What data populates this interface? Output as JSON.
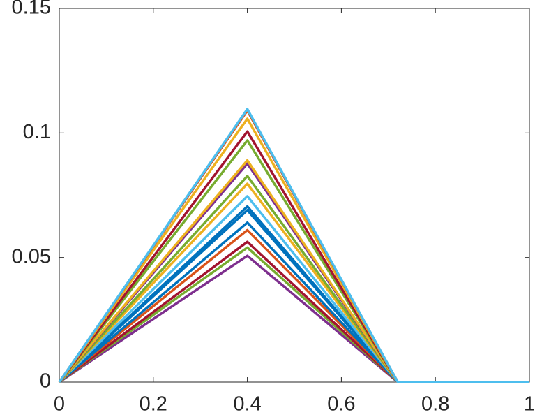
{
  "chart_data": {
    "type": "line",
    "x": [
      0,
      0.4,
      0.72,
      1
    ],
    "series": [
      {
        "color": "#7E2F8E",
        "values": [
          0,
          0.0507,
          0,
          0
        ]
      },
      {
        "color": "#77AC30",
        "values": [
          0,
          0.054,
          0,
          0
        ]
      },
      {
        "color": "#A2142F",
        "values": [
          0,
          0.0563,
          0,
          0
        ]
      },
      {
        "color": "#D95319",
        "values": [
          0,
          0.061,
          0,
          0
        ]
      },
      {
        "color": "#0072BD",
        "values": [
          0,
          0.064,
          0,
          0
        ]
      },
      {
        "color": "#0072BD",
        "values": [
          0,
          0.069,
          0,
          0
        ]
      },
      {
        "color": "#0072BD",
        "values": [
          0,
          0.0705,
          0,
          0
        ]
      },
      {
        "color": "#4DBEEE",
        "values": [
          0,
          0.0746,
          0,
          0
        ]
      },
      {
        "color": "#EDB120",
        "values": [
          0,
          0.0796,
          0,
          0
        ]
      },
      {
        "color": "#77AC30",
        "values": [
          0,
          0.0827,
          0,
          0
        ]
      },
      {
        "color": "#7E2F8E",
        "values": [
          0,
          0.0877,
          0,
          0
        ]
      },
      {
        "color": "#EDB120",
        "values": [
          0,
          0.089,
          0,
          0
        ]
      },
      {
        "color": "#77AC30",
        "values": [
          0,
          0.097,
          0,
          0
        ]
      },
      {
        "color": "#A2142F",
        "values": [
          0,
          0.1006,
          0,
          0
        ]
      },
      {
        "color": "#EDB120",
        "values": [
          0,
          0.1057,
          0,
          0
        ]
      },
      {
        "color": "#D95319",
        "values": [
          0,
          0.109,
          0,
          0
        ]
      },
      {
        "color": "#4DBEEE",
        "values": [
          0,
          0.1096,
          0,
          0
        ]
      }
    ],
    "xlim": [
      0,
      1
    ],
    "xticks": [
      0,
      0.2,
      0.4,
      0.6,
      0.8,
      1
    ],
    "ylim": [
      0,
      0.15
    ],
    "yticks": [
      0,
      0.05,
      0.1,
      0.15
    ],
    "grid": false
  }
}
